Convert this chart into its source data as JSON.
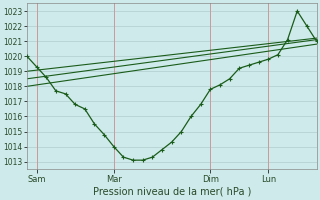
{
  "xlabel": "Pression niveau de la mer( hPa )",
  "ylim": [
    1012.5,
    1023.5
  ],
  "yticks": [
    1013,
    1014,
    1015,
    1016,
    1017,
    1018,
    1019,
    1020,
    1021,
    1022,
    1023
  ],
  "background_color": "#ceeaea",
  "grid_color": "#b0cccc",
  "line_color": "#1a5c1a",
  "xtick_labels": [
    "Sam",
    "Mar",
    "Dim",
    "Lun"
  ],
  "vline_color": "#cc9999",
  "line1_x": [
    0,
    1,
    2,
    3,
    4,
    5,
    6,
    7,
    8,
    9,
    10,
    11,
    12,
    13,
    14,
    15,
    16,
    17,
    18,
    19,
    20,
    21,
    22,
    23,
    24,
    25,
    26,
    27,
    28,
    29,
    30
  ],
  "line1_y": [
    1020.0,
    1019.3,
    1018.6,
    1017.7,
    1017.5,
    1016.8,
    1016.5,
    1015.5,
    1014.8,
    1014.0,
    1013.3,
    1013.1,
    1013.1,
    1013.3,
    1013.8,
    1014.3,
    1015.0,
    1016.0,
    1016.8,
    1017.8,
    1018.1,
    1018.5,
    1019.2,
    1019.4,
    1019.6,
    1019.8,
    1020.1,
    1021.1,
    1023.0,
    1022.0,
    1021.0
  ],
  "line2_x": [
    0,
    30
  ],
  "line2_y": [
    1019.0,
    1021.2
  ],
  "line3_x": [
    0,
    30
  ],
  "line3_y": [
    1018.5,
    1021.1
  ],
  "line4_x": [
    0,
    30
  ],
  "line4_y": [
    1018.0,
    1020.8
  ],
  "line1_markers_x": [
    0,
    1,
    2,
    3,
    4,
    5,
    6,
    7,
    8,
    9,
    10,
    11,
    12,
    13,
    14,
    15,
    16,
    17,
    18,
    19,
    20,
    21,
    22,
    23,
    24,
    25,
    26,
    27,
    28,
    29,
    30
  ],
  "xlim": [
    0,
    30
  ]
}
